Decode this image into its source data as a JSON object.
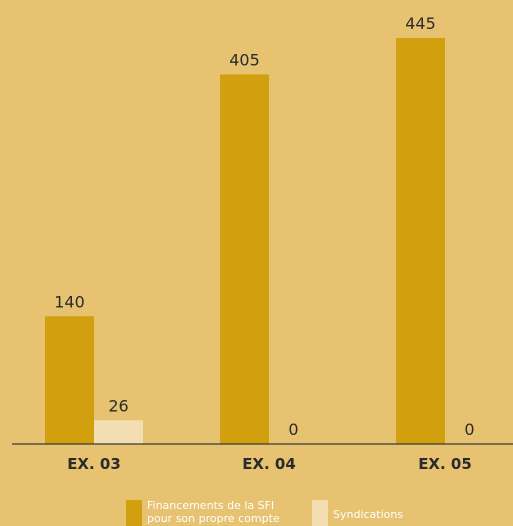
{
  "chart_data": {
    "type": "bar",
    "categories": [
      "EX. 03",
      "EX. 04",
      "EX. 05"
    ],
    "series": [
      {
        "name": "Financements de la SFI pour son propre compte",
        "values": [
          140,
          405,
          445
        ],
        "color": "#d29f0e"
      },
      {
        "name": "Syndications",
        "values": [
          26,
          0,
          0
        ],
        "color": "#f3deb2"
      }
    ],
    "ylim": [
      0,
      450
    ],
    "grid": false,
    "legend": "bottom"
  },
  "legend": {
    "item1": [
      "Financements de la SFI",
      "pour son propre compte"
    ],
    "item2": "Syndications"
  }
}
